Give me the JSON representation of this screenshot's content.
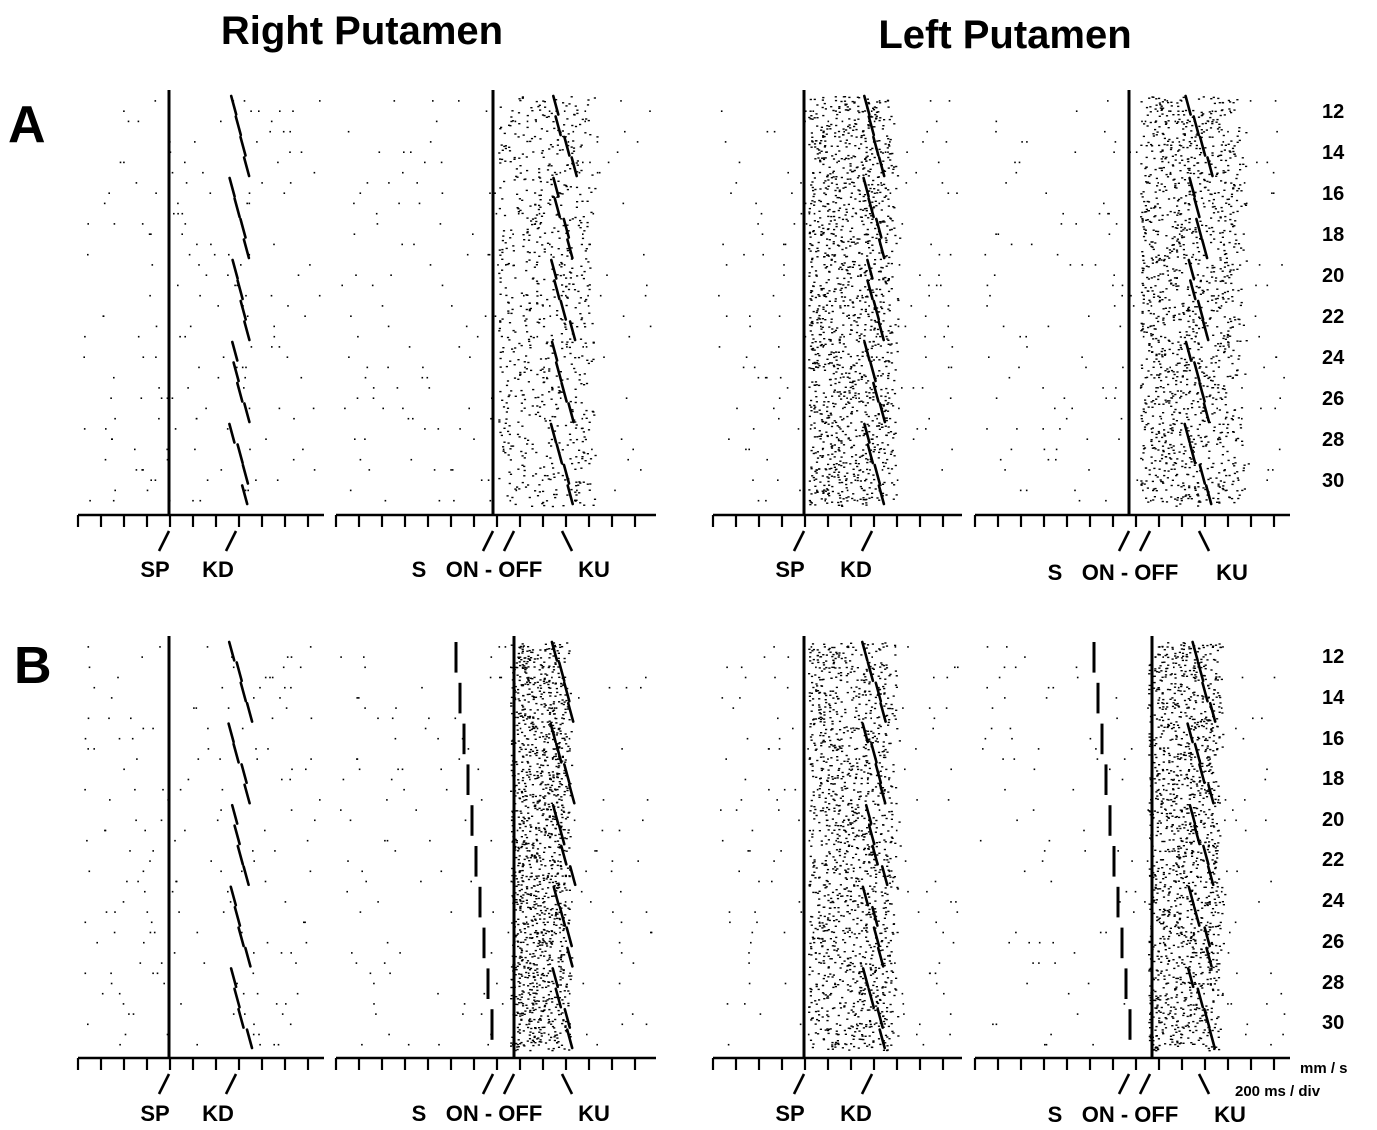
{
  "headers": {
    "right": "Right   Putamen",
    "left": "Left  Putamen"
  },
  "panels": [
    {
      "label": "A",
      "blocks": [
        {
          "events": {
            "align": "SP",
            "kd": "KD"
          },
          "firing": "sparse"
        },
        {
          "events": {
            "s": "S",
            "onoff": "ON - OFF",
            "ku": "KU"
          },
          "firing": "moderate"
        },
        {
          "events": {
            "align": "SP",
            "kd": "KD"
          },
          "firing": "dense"
        },
        {
          "events": {
            "s": "S",
            "onoff": "ON - OFF",
            "ku": "KU"
          },
          "firing": "dense"
        }
      ]
    },
    {
      "label": "B",
      "blocks": [
        {
          "events": {
            "align": "SP",
            "kd": "KD"
          },
          "firing": "sparse"
        },
        {
          "events": {
            "s": "S",
            "onoff": "ON - OFF",
            "ku": "KU"
          },
          "firing": "dense"
        },
        {
          "events": {
            "align": "SP",
            "kd": "KD"
          },
          "firing": "dense"
        },
        {
          "events": {
            "s": "S",
            "onoff": "ON - OFF",
            "ku": "KU"
          },
          "firing": "dense"
        }
      ]
    }
  ],
  "trial_labels": [
    "12",
    "14",
    "16",
    "18",
    "20",
    "22",
    "24",
    "26",
    "28",
    "30"
  ],
  "scale": {
    "speed": "mm / s",
    "time": "200 ms / div"
  }
}
